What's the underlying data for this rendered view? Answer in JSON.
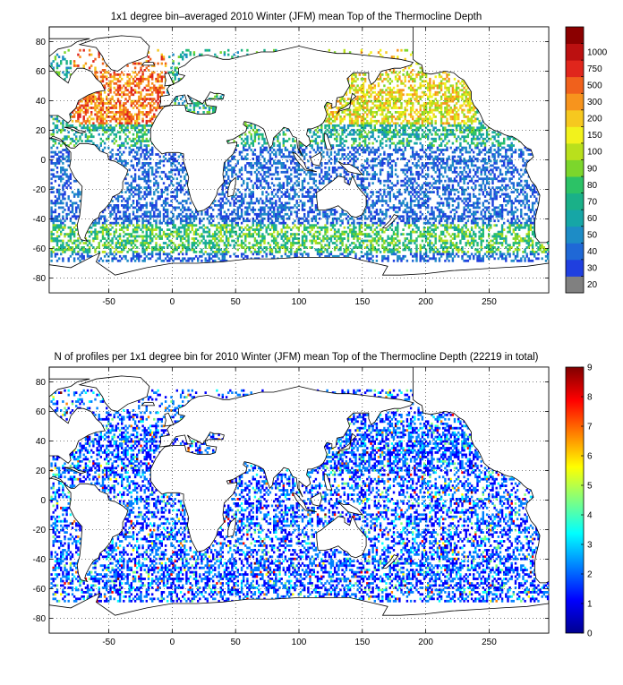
{
  "panels": [
    {
      "title": "1x1 degree bin–averaged 2010 Winter (JFM) mean Top of the Thermocline Depth",
      "colorbar": {
        "type": "categorical",
        "labels": [
          "20",
          "30",
          "40",
          "50",
          "60",
          "70",
          "80",
          "90",
          "100",
          "150",
          "200",
          "300",
          "500",
          "750",
          "1000"
        ],
        "colors": [
          "#808080",
          "#1f3fdf",
          "#1f68d6",
          "#1d8cc6",
          "#16a6a6",
          "#1ab088",
          "#2cc266",
          "#7cd62c",
          "#b9e01c",
          "#f2f21c",
          "#f6c81f",
          "#f7941d",
          "#f0611c",
          "#e0261c",
          "#bb1010",
          "#8b0000"
        ]
      }
    },
    {
      "title": "N of profiles per 1x1 degree bin for 2010 Winter (JFM) mean Top of the Thermocline Depth  (22219 in total)",
      "colorbar": {
        "type": "continuous",
        "labels": [
          "0",
          "1",
          "2",
          "3",
          "4",
          "5",
          "6",
          "7",
          "8",
          "9"
        ],
        "colors": [
          "#00008f",
          "#0000ff",
          "#0080ff",
          "#00ffff",
          "#80ff80",
          "#ffff00",
          "#ff8000",
          "#ff0000",
          "#800000"
        ]
      }
    }
  ],
  "axes": {
    "xticks": [
      "-50",
      "0",
      "50",
      "100",
      "150",
      "200",
      "250"
    ],
    "yticks": [
      "80",
      "60",
      "40",
      "20",
      "0",
      "-20",
      "-40",
      "-60",
      "-80"
    ]
  },
  "chart_data": [
    {
      "type": "heatmap",
      "title": "1x1 degree bin–averaged 2010 Winter (JFM) mean Top of the Thermocline Depth",
      "xlim": [
        -97,
        297
      ],
      "ylim": [
        -90,
        90
      ],
      "xticks": [
        -50,
        0,
        50,
        100,
        150,
        200,
        250
      ],
      "yticks": [
        -80,
        -60,
        -40,
        -20,
        0,
        20,
        40,
        60,
        80
      ],
      "grid": true,
      "colorbar_levels": [
        20,
        30,
        40,
        50,
        60,
        70,
        80,
        90,
        100,
        150,
        200,
        300,
        500,
        750,
        1000
      ]
    },
    {
      "type": "heatmap",
      "title": "N of profiles per 1x1 degree bin for 2010 Winter (JFM) mean Top of the Thermocline Depth  (22219 in total)",
      "xlim": [
        -97,
        297
      ],
      "ylim": [
        -90,
        90
      ],
      "xticks": [
        -50,
        0,
        50,
        100,
        150,
        200,
        250
      ],
      "yticks": [
        -80,
        -60,
        -40,
        -20,
        0,
        20,
        40,
        60,
        80
      ],
      "grid": true,
      "clim": [
        0,
        9
      ],
      "total_profiles": 22219
    }
  ]
}
